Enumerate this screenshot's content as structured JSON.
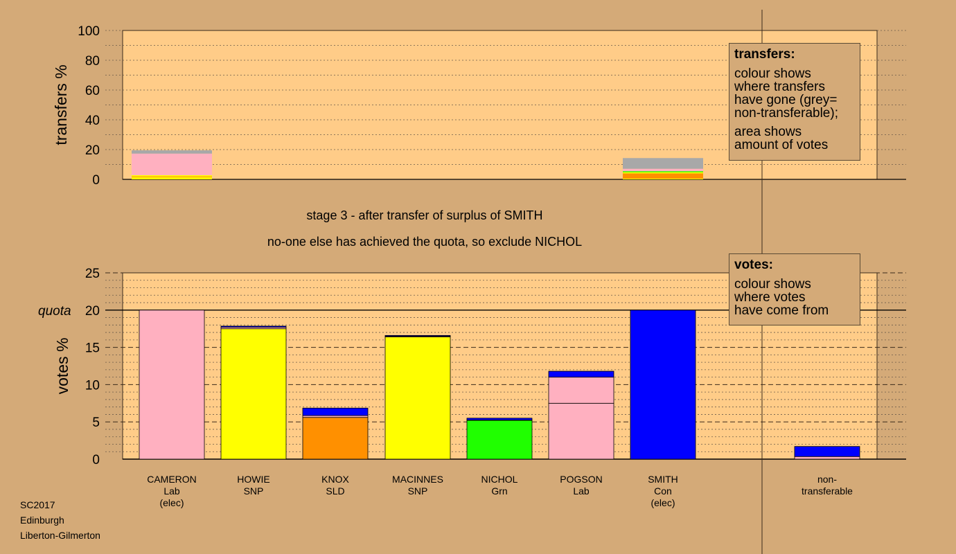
{
  "colors": {
    "Lab": "#ffb0c0",
    "SNP": "#ffff00",
    "SLD": "#ff9000",
    "Grn": "#20ff00",
    "Con": "#0000ff",
    "nontransferable": "#a8a8a8",
    "plot_bg": "#ffcc88",
    "page_bg": "#d4aa78"
  },
  "stage_text": [
    "stage 3 - after transfer of surplus of SMITH",
    "no-one else has achieved the quota, so exclude NICHOL"
  ],
  "legend_transfers": {
    "title": "transfers:",
    "lines1": [
      "colour shows",
      "where transfers",
      "have gone (grey=",
      "non-transferable);"
    ],
    "lines2": [
      "area shows",
      "amount of votes"
    ]
  },
  "legend_votes": {
    "title": "votes:",
    "lines": [
      "colour shows",
      "where votes",
      "have come from"
    ]
  },
  "footer": [
    "SC2017",
    "Edinburgh",
    "Liberton-Gilmerton"
  ],
  "chart_data": [
    {
      "type": "bar",
      "ylabel": "transfers %",
      "ylim": [
        0,
        100
      ],
      "yticks": [
        0,
        20,
        40,
        60,
        80,
        100
      ],
      "categories": [
        "CAMERON",
        "HOWIE",
        "KNOX",
        "MACINNES",
        "NICHOL",
        "POGSON",
        "SMITH",
        "",
        "non-transferable"
      ],
      "stacks": {
        "CAMERON": [
          {
            "party": "SNP",
            "value": 1.5
          },
          {
            "party": "SLD",
            "value": 0.5
          },
          {
            "party": "SNP",
            "value": 0.8
          },
          {
            "party": "Lab",
            "value": 14.5
          },
          {
            "party": "nontransferable",
            "value": 2.2
          }
        ],
        "SMITH": [
          {
            "party": "SNP",
            "value": 0.5
          },
          {
            "party": "SLD",
            "value": 3.5
          },
          {
            "party": "SNP",
            "value": 0.8
          },
          {
            "party": "Grn",
            "value": 0.7
          },
          {
            "party": "Lab",
            "value": 1.6
          },
          {
            "party": "nontransferable",
            "value": 7.2
          }
        ]
      }
    },
    {
      "type": "bar",
      "ylabel": "votes %",
      "ylim": [
        0,
        25
      ],
      "yticks": [
        0,
        5,
        10,
        15,
        20,
        25
      ],
      "quota": 20,
      "quota_label": "quota",
      "candidates": [
        {
          "name": "CAMERON",
          "party": "Lab",
          "note": "(elec)",
          "segments": [
            {
              "party": "Lab",
              "value": 20.0
            }
          ]
        },
        {
          "name": "HOWIE",
          "party": "SNP",
          "note": "",
          "segments": [
            {
              "party": "SNP",
              "value": 17.5
            },
            {
              "party": "Lab",
              "value": 0.2
            },
            {
              "party": "Con",
              "value": 0.15
            }
          ]
        },
        {
          "name": "KNOX",
          "party": "SLD",
          "note": "",
          "segments": [
            {
              "party": "SLD",
              "value": 5.6
            },
            {
              "party": "Lab",
              "value": 0.25
            },
            {
              "party": "Con",
              "value": 1.0
            }
          ]
        },
        {
          "name": "MACINNES",
          "party": "SNP",
          "note": "",
          "segments": [
            {
              "party": "SNP",
              "value": 16.4
            },
            {
              "party": "Lab",
              "value": 0.1
            },
            {
              "party": "Con",
              "value": 0.1
            }
          ]
        },
        {
          "name": "NICHOL",
          "party": "Grn",
          "note": "",
          "segments": [
            {
              "party": "Grn",
              "value": 5.2
            },
            {
              "party": "Lab",
              "value": 0.05
            },
            {
              "party": "Con",
              "value": 0.25
            }
          ]
        },
        {
          "name": "POGSON",
          "party": "Lab",
          "note": "",
          "segments": [
            {
              "party": "Lab",
              "value": 7.5
            },
            {
              "party": "Lab",
              "value": 3.5
            },
            {
              "party": "Con",
              "value": 0.8
            }
          ]
        },
        {
          "name": "SMITH",
          "party": "Con",
          "note": "(elec)",
          "segments": [
            {
              "party": "Con",
              "value": 20.0
            }
          ]
        },
        {
          "name": "",
          "party": "",
          "note": "",
          "segments": []
        },
        {
          "name": "non-",
          "party": "transferable",
          "note": "",
          "segments": [
            {
              "party": "Lab",
              "value": 0.35
            },
            {
              "party": "Con",
              "value": 1.35
            }
          ]
        }
      ]
    }
  ]
}
